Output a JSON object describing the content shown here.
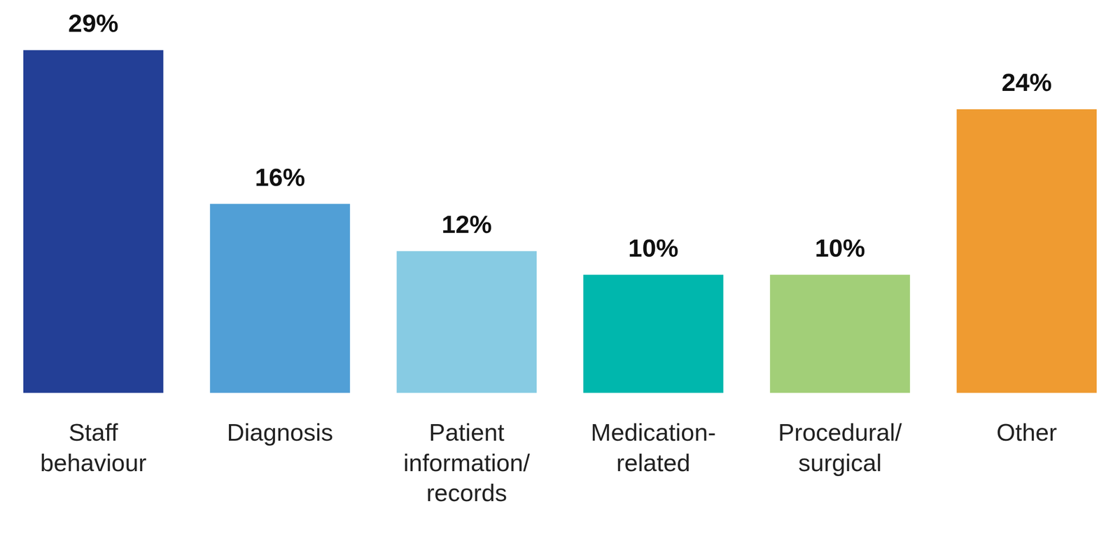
{
  "chart_data": {
    "type": "bar",
    "categories": [
      "Staff behaviour",
      "Diagnosis",
      "Patient information/ records",
      "Medication-related",
      "Procedural/ surgical",
      "Other"
    ],
    "values": [
      29,
      16,
      12,
      10,
      10,
      24
    ],
    "value_labels": [
      "29%",
      "16%",
      "12%",
      "10%",
      "10%",
      "24%"
    ],
    "colors": [
      "#233f96",
      "#519fd6",
      "#87cbe3",
      "#00b7ad",
      "#a2cf78",
      "#ef9b31"
    ],
    "ylim": [
      0,
      29
    ],
    "grid": false,
    "data_labels": true,
    "tick_labels": "x"
  }
}
